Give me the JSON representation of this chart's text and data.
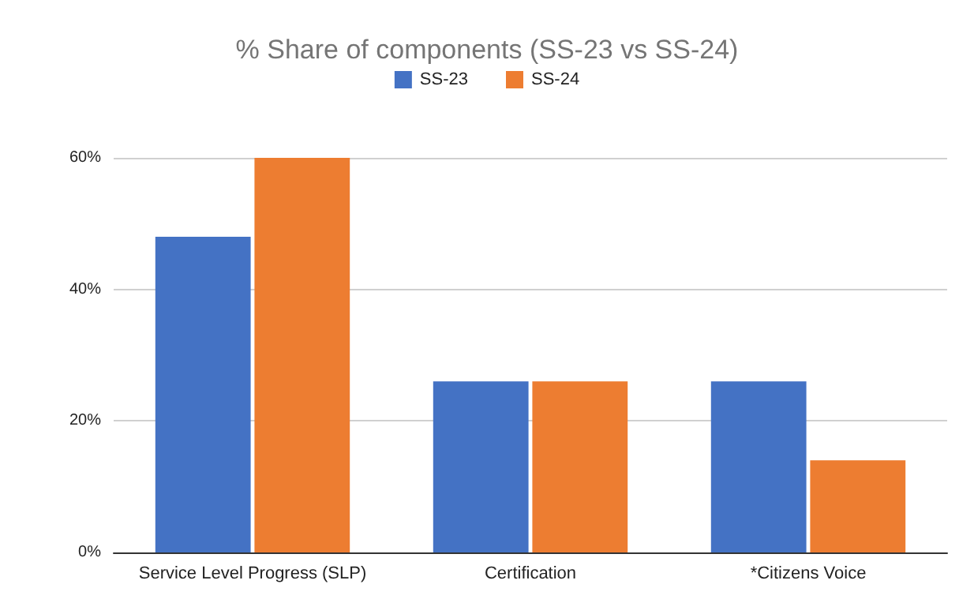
{
  "chart_data": {
    "type": "bar",
    "title": "% Share of components (SS-23 vs SS-24)",
    "categories": [
      "Service Level Progress (SLP)",
      "Certification",
      "*Citizens Voice"
    ],
    "series": [
      {
        "name": "SS-23",
        "color": "#4472c4",
        "values": [
          48,
          26,
          26
        ]
      },
      {
        "name": "SS-24",
        "color": "#ed7d31",
        "values": [
          60,
          26,
          14
        ]
      }
    ],
    "ylim": [
      0,
      60
    ],
    "yticks": [
      {
        "value": 0,
        "label": "0%"
      },
      {
        "value": 20,
        "label": "20%"
      },
      {
        "value": 40,
        "label": "40%"
      },
      {
        "value": 60,
        "label": "60%"
      }
    ],
    "grid": "y",
    "legend": "top"
  }
}
